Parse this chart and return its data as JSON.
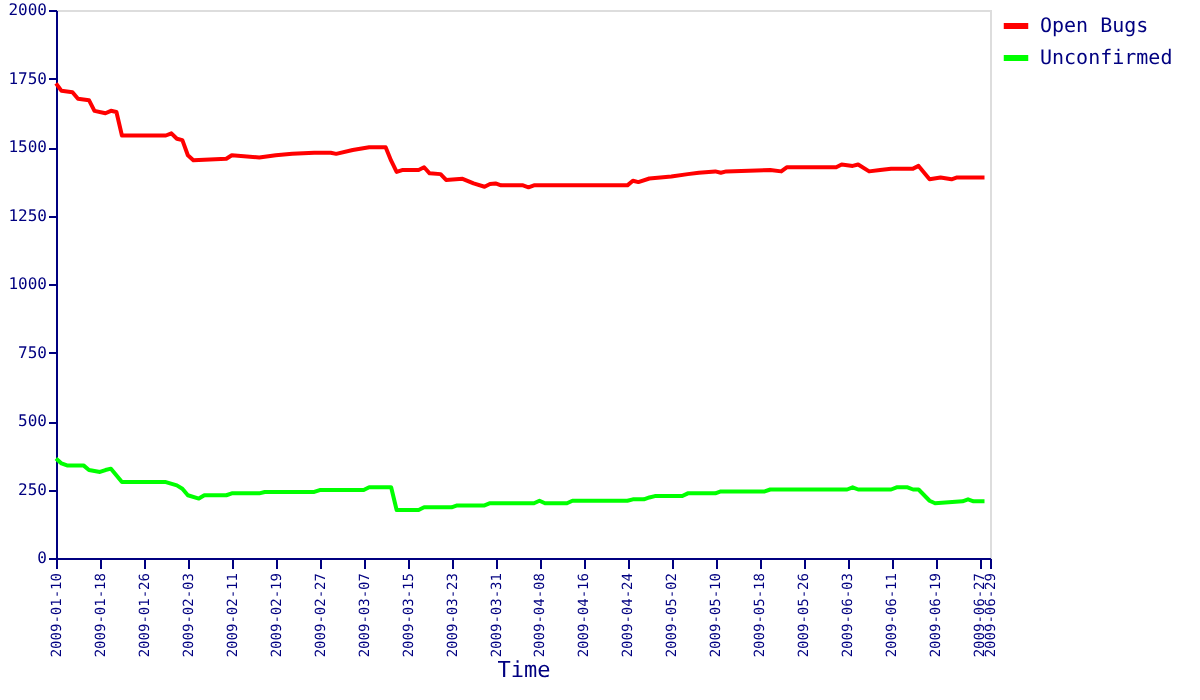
{
  "chart_data": {
    "type": "line",
    "xlabel": "Time",
    "legend": "top right",
    "grid": false,
    "marker": "none",
    "line_style": "solid",
    "xlim": [
      "2009-01-10",
      "2009-06-29"
    ],
    "xticks": [
      "2009-01-10",
      "2009-01-18",
      "2009-01-26",
      "2009-02-03",
      "2009-02-11",
      "2009-02-19",
      "2009-02-27",
      "2009-03-07",
      "2009-03-15",
      "2009-03-23",
      "2009-03-31",
      "2009-04-08",
      "2009-04-16",
      "2009-04-24",
      "2009-05-02",
      "2009-05-10",
      "2009-05-18",
      "2009-05-26",
      "2009-06-03",
      "2009-06-11",
      "2009-06-19",
      "2009-06-27",
      "2009-06-29"
    ],
    "ylim": [
      0,
      2000
    ],
    "yticks": [
      0,
      250,
      500,
      750,
      1000,
      1250,
      1500,
      1750,
      2000
    ],
    "series": [
      {
        "name": "Open Bugs",
        "color": "#ff0000",
        "x": [
          "2009-01-10",
          "2009-01-11",
          "2009-01-13",
          "2009-01-14",
          "2009-01-16",
          "2009-01-17",
          "2009-01-19",
          "2009-01-20",
          "2009-01-21",
          "2009-01-22",
          "2009-01-30",
          "2009-01-31",
          "2009-02-01",
          "2009-02-02",
          "2009-02-03",
          "2009-02-04",
          "2009-02-10",
          "2009-02-11",
          "2009-02-16",
          "2009-02-19",
          "2009-02-22",
          "2009-02-26",
          "2009-03-01",
          "2009-03-02",
          "2009-03-05",
          "2009-03-08",
          "2009-03-11",
          "2009-03-12",
          "2009-03-13",
          "2009-03-14",
          "2009-03-17",
          "2009-03-18",
          "2009-03-19",
          "2009-03-21",
          "2009-03-22",
          "2009-03-25",
          "2009-03-27",
          "2009-03-29",
          "2009-03-30",
          "2009-03-31",
          "2009-04-01",
          "2009-04-05",
          "2009-04-06",
          "2009-04-07",
          "2009-04-24",
          "2009-04-25",
          "2009-04-26",
          "2009-04-28",
          "2009-05-02",
          "2009-05-05",
          "2009-05-07",
          "2009-05-10",
          "2009-05-11",
          "2009-05-12",
          "2009-05-20",
          "2009-05-22",
          "2009-05-23",
          "2009-06-01",
          "2009-06-02",
          "2009-06-04",
          "2009-06-05",
          "2009-06-07",
          "2009-06-09",
          "2009-06-11",
          "2009-06-15",
          "2009-06-16",
          "2009-06-18",
          "2009-06-20",
          "2009-06-22",
          "2009-06-23",
          "2009-06-28"
        ],
        "values": [
          1732,
          1705,
          1700,
          1676,
          1671,
          1632,
          1623,
          1632,
          1628,
          1542,
          1542,
          1550,
          1530,
          1525,
          1470,
          1452,
          1457,
          1470,
          1462,
          1470,
          1475,
          1479,
          1479,
          1475,
          1489,
          1499,
          1499,
          1450,
          1409,
          1416,
          1416,
          1426,
          1404,
          1401,
          1380,
          1384,
          1367,
          1355,
          1365,
          1367,
          1360,
          1360,
          1353,
          1360,
          1360,
          1377,
          1372,
          1385,
          1392,
          1401,
          1406,
          1411,
          1406,
          1411,
          1416,
          1411,
          1426,
          1426,
          1436,
          1431,
          1436,
          1411,
          1416,
          1421,
          1421,
          1431,
          1382,
          1389,
          1382,
          1389,
          1389
        ]
      },
      {
        "name": "Unconfirmed",
        "color": "#00ff00",
        "x": [
          "2009-01-10",
          "2009-01-11",
          "2009-01-12",
          "2009-01-15",
          "2009-01-16",
          "2009-01-18",
          "2009-01-19",
          "2009-01-20",
          "2009-01-22",
          "2009-01-30",
          "2009-02-01",
          "2009-02-02",
          "2009-02-03",
          "2009-02-05",
          "2009-02-06",
          "2009-02-10",
          "2009-02-11",
          "2009-02-16",
          "2009-02-17",
          "2009-02-26",
          "2009-02-27",
          "2009-03-07",
          "2009-03-08",
          "2009-03-12",
          "2009-03-13",
          "2009-03-17",
          "2009-03-18",
          "2009-03-23",
          "2009-03-24",
          "2009-03-29",
          "2009-03-30",
          "2009-04-07",
          "2009-04-08",
          "2009-04-09",
          "2009-04-13",
          "2009-04-14",
          "2009-04-24",
          "2009-04-25",
          "2009-04-27",
          "2009-04-28",
          "2009-04-29",
          "2009-05-04",
          "2009-05-05",
          "2009-05-10",
          "2009-05-11",
          "2009-05-19",
          "2009-05-20",
          "2009-06-03",
          "2009-06-04",
          "2009-06-05",
          "2009-06-11",
          "2009-06-12",
          "2009-06-14",
          "2009-06-15",
          "2009-06-16",
          "2009-06-18",
          "2009-06-19",
          "2009-06-24",
          "2009-06-25",
          "2009-06-26",
          "2009-06-28"
        ],
        "values": [
          363,
          345,
          338,
          338,
          321,
          314,
          321,
          326,
          277,
          277,
          265,
          253,
          229,
          217,
          229,
          229,
          236,
          236,
          241,
          241,
          248,
          248,
          258,
          258,
          175,
          175,
          185,
          185,
          192,
          192,
          200,
          200,
          209,
          200,
          200,
          209,
          209,
          214,
          214,
          221,
          226,
          226,
          236,
          236,
          243,
          243,
          250,
          250,
          258,
          250,
          250,
          258,
          258,
          250,
          250,
          209,
          200,
          207,
          214,
          207,
          207
        ]
      }
    ]
  }
}
